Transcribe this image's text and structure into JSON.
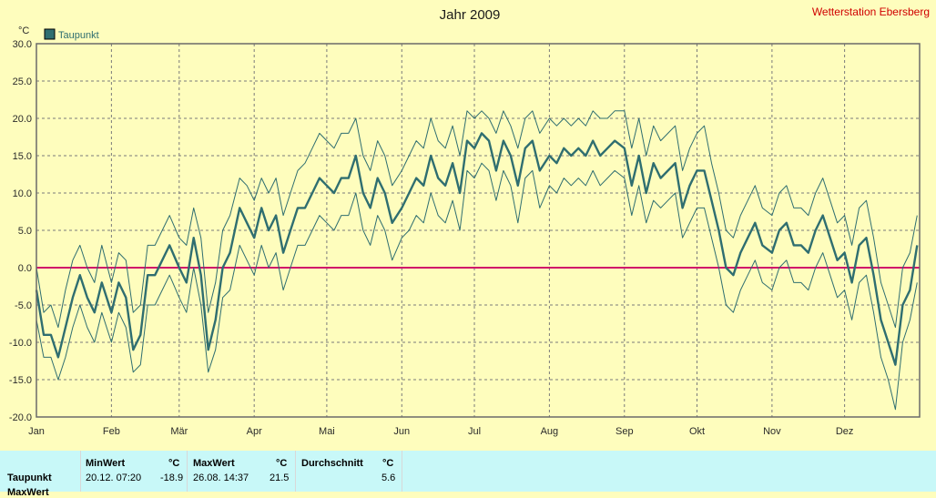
{
  "chart_data": {
    "type": "line",
    "title": "Jahr 2009",
    "station": "Wetterstation Ebersberg",
    "ylabel": "°C",
    "ylim": [
      -20,
      30
    ],
    "yticks": [
      "30.0",
      "25.0",
      "20.0",
      "15.0",
      "10.0",
      "5.0",
      "0.0",
      "-5.0",
      "-10.0",
      "-15.0",
      "-20.0"
    ],
    "xlim": [
      0,
      365
    ],
    "month_labels": [
      "Jan",
      "Feb",
      "Mär",
      "Apr",
      "Mai",
      "Jun",
      "Jul",
      "Aug",
      "Sep",
      "Okt",
      "Nov",
      "Dez"
    ],
    "month_starts": [
      0,
      31,
      59,
      90,
      120,
      151,
      181,
      212,
      243,
      273,
      304,
      334
    ],
    "grid": true,
    "legend": "top-left",
    "reference_line": 0,
    "series": [
      {
        "name": "Taupunkt",
        "role": "mean",
        "x": [
          0,
          3,
          6,
          9,
          12,
          15,
          18,
          21,
          24,
          27,
          31,
          34,
          37,
          40,
          43,
          46,
          49,
          52,
          55,
          59,
          62,
          65,
          68,
          71,
          74,
          77,
          80,
          84,
          87,
          90,
          93,
          96,
          99,
          102,
          105,
          108,
          111,
          114,
          117,
          120,
          123,
          126,
          129,
          132,
          135,
          138,
          141,
          144,
          147,
          151,
          154,
          157,
          160,
          163,
          166,
          169,
          172,
          175,
          178,
          181,
          184,
          187,
          190,
          193,
          196,
          199,
          202,
          205,
          208,
          212,
          215,
          218,
          221,
          224,
          227,
          230,
          233,
          236,
          239,
          243,
          246,
          249,
          252,
          255,
          258,
          261,
          264,
          267,
          270,
          273,
          276,
          279,
          282,
          285,
          288,
          291,
          294,
          297,
          300,
          304,
          307,
          310,
          313,
          316,
          319,
          322,
          325,
          328,
          331,
          334,
          337,
          340,
          343,
          346,
          349,
          352,
          355,
          358,
          361,
          364
        ],
        "values": [
          -3,
          -9,
          -9,
          -12,
          -8,
          -4,
          -1,
          -4,
          -6,
          -2,
          -6,
          -2,
          -4,
          -11,
          -9,
          -1,
          -1,
          1,
          3,
          0,
          -2,
          4,
          -1,
          -11,
          -7,
          0,
          2,
          8,
          6,
          4,
          8,
          5,
          7,
          2,
          5,
          8,
          8,
          10,
          12,
          11,
          10,
          12,
          12,
          15,
          10,
          8,
          12,
          10,
          6,
          8,
          10,
          12,
          11,
          15,
          12,
          11,
          14,
          10,
          17,
          16,
          18,
          17,
          13,
          17,
          15,
          11,
          16,
          17,
          13,
          15,
          14,
          16,
          15,
          16,
          15,
          17,
          15,
          16,
          17,
          16,
          11,
          15,
          10,
          14,
          12,
          13,
          14,
          8,
          11,
          13,
          13,
          9,
          5,
          0,
          -1,
          2,
          4,
          6,
          3,
          2,
          5,
          6,
          3,
          3,
          2,
          5,
          7,
          4,
          1,
          2,
          -2,
          3,
          4,
          -1,
          -7,
          -10,
          -13,
          -5,
          -3,
          3
        ]
      },
      {
        "name": "",
        "role": "max",
        "x": [
          0,
          3,
          6,
          9,
          12,
          15,
          18,
          21,
          24,
          27,
          31,
          34,
          37,
          40,
          43,
          46,
          49,
          52,
          55,
          59,
          62,
          65,
          68,
          71,
          74,
          77,
          80,
          84,
          87,
          90,
          93,
          96,
          99,
          102,
          105,
          108,
          111,
          114,
          117,
          120,
          123,
          126,
          129,
          132,
          135,
          138,
          141,
          144,
          147,
          151,
          154,
          157,
          160,
          163,
          166,
          169,
          172,
          175,
          178,
          181,
          184,
          187,
          190,
          193,
          196,
          199,
          202,
          205,
          208,
          212,
          215,
          218,
          221,
          224,
          227,
          230,
          233,
          236,
          239,
          243,
          246,
          249,
          252,
          255,
          258,
          261,
          264,
          267,
          270,
          273,
          276,
          279,
          282,
          285,
          288,
          291,
          294,
          297,
          300,
          304,
          307,
          310,
          313,
          316,
          319,
          322,
          325,
          328,
          331,
          334,
          337,
          340,
          343,
          346,
          349,
          352,
          355,
          358,
          361,
          364
        ],
        "values": [
          0,
          -6,
          -5,
          -8,
          -3,
          1,
          3,
          0,
          -2,
          3,
          -2,
          2,
          1,
          -6,
          -5,
          3,
          3,
          5,
          7,
          4,
          3,
          8,
          4,
          -6,
          -2,
          5,
          7,
          12,
          11,
          9,
          12,
          10,
          12,
          7,
          10,
          13,
          14,
          16,
          18,
          17,
          16,
          18,
          18,
          20,
          15,
          13,
          17,
          15,
          11,
          13,
          15,
          17,
          16,
          20,
          17,
          16,
          19,
          15,
          21,
          20,
          21,
          20,
          18,
          21,
          19,
          16,
          20,
          21,
          18,
          20,
          19,
          20,
          19,
          20,
          19,
          21,
          20,
          20,
          21,
          21,
          16,
          20,
          15,
          19,
          17,
          18,
          19,
          13,
          16,
          18,
          19,
          14,
          10,
          5,
          4,
          7,
          9,
          11,
          8,
          7,
          10,
          11,
          8,
          8,
          7,
          10,
          12,
          9,
          6,
          7,
          3,
          8,
          9,
          4,
          -2,
          -5,
          -8,
          0,
          2,
          7
        ]
      },
      {
        "name": "",
        "role": "min",
        "x": [
          0,
          3,
          6,
          9,
          12,
          15,
          18,
          21,
          24,
          27,
          31,
          34,
          37,
          40,
          43,
          46,
          49,
          52,
          55,
          59,
          62,
          65,
          68,
          71,
          74,
          77,
          80,
          84,
          87,
          90,
          93,
          96,
          99,
          102,
          105,
          108,
          111,
          114,
          117,
          120,
          123,
          126,
          129,
          132,
          135,
          138,
          141,
          144,
          147,
          151,
          154,
          157,
          160,
          163,
          166,
          169,
          172,
          175,
          178,
          181,
          184,
          187,
          190,
          193,
          196,
          199,
          202,
          205,
          208,
          212,
          215,
          218,
          221,
          224,
          227,
          230,
          233,
          236,
          239,
          243,
          246,
          249,
          252,
          255,
          258,
          261,
          264,
          267,
          270,
          273,
          276,
          279,
          282,
          285,
          288,
          291,
          294,
          297,
          300,
          304,
          307,
          310,
          313,
          316,
          319,
          322,
          325,
          328,
          331,
          334,
          337,
          340,
          343,
          346,
          349,
          352,
          355,
          358,
          361,
          364
        ],
        "values": [
          -7,
          -12,
          -12,
          -15,
          -12,
          -8,
          -5,
          -8,
          -10,
          -6,
          -10,
          -6,
          -8,
          -14,
          -13,
          -5,
          -5,
          -3,
          -1,
          -4,
          -6,
          0,
          -5,
          -14,
          -11,
          -4,
          -3,
          3,
          1,
          -1,
          3,
          0,
          2,
          -3,
          0,
          3,
          3,
          5,
          7,
          6,
          5,
          7,
          7,
          10,
          5,
          3,
          7,
          5,
          1,
          4,
          5,
          7,
          6,
          10,
          7,
          6,
          9,
          5,
          13,
          12,
          14,
          13,
          9,
          13,
          11,
          6,
          12,
          13,
          8,
          11,
          10,
          12,
          11,
          12,
          11,
          13,
          11,
          12,
          13,
          12,
          7,
          11,
          6,
          9,
          8,
          9,
          10,
          4,
          6,
          8,
          8,
          4,
          0,
          -5,
          -6,
          -3,
          -1,
          1,
          -2,
          -3,
          0,
          1,
          -2,
          -2,
          -3,
          0,
          2,
          -1,
          -4,
          -3,
          -7,
          -2,
          -1,
          -6,
          -12,
          -15,
          -19,
          -10,
          -7,
          -2
        ]
      }
    ]
  },
  "legend": {
    "label": "Taupunkt",
    "color": "#2f6e70"
  },
  "colors": {
    "series": "#2f6e70",
    "zero_line": "#d0106a",
    "plot_border": "#6a6a6a",
    "station": "#d00000",
    "grid": "#7a7a7a"
  },
  "footer": {
    "row_label": "Taupunkt",
    "cut_label": "MaxWert",
    "min_header": "MinWert",
    "max_header": "MaxWert",
    "avg_header": "Durchschnitt",
    "unit": "°C",
    "min_time": "20.12.  07:20",
    "min_value": "-18.9",
    "max_time": "26.08.  14:37",
    "max_value": "21.5",
    "avg_value": "5.6"
  }
}
